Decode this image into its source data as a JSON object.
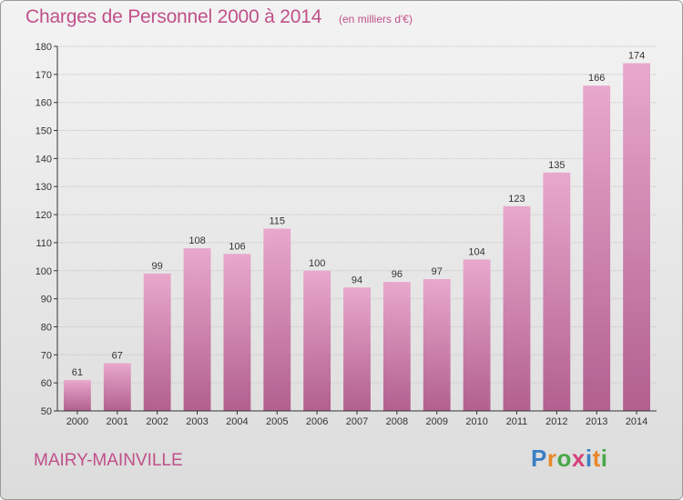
{
  "header": {
    "title": "Charges de Personnel 2000 à 2014",
    "subtitle": "(en milliers d'€)"
  },
  "footer": {
    "city": "MAIRY-MAINVILLE",
    "brand_letters": [
      "P",
      "r",
      "o",
      "x",
      "i",
      "t",
      "i"
    ],
    "brand_colors": [
      "#3a7fc4",
      "#e8892a",
      "#4aa84a",
      "#d6417a",
      "#3a7fc4",
      "#e8892a",
      "#4aa84a"
    ]
  },
  "colors": {
    "bar_top": "#e8a8cc",
    "bar_bottom": "#b2608f",
    "accent": "#c0508a"
  },
  "chart_data": {
    "type": "bar",
    "title": "Charges de Personnel 2000 à 2014",
    "categories": [
      "2000",
      "2001",
      "2002",
      "2003",
      "2004",
      "2005",
      "2006",
      "2007",
      "2008",
      "2009",
      "2010",
      "2011",
      "2012",
      "2013",
      "2014"
    ],
    "values": [
      61,
      67,
      99,
      108,
      106,
      115,
      100,
      94,
      96,
      97,
      104,
      123,
      135,
      166,
      174
    ],
    "ylim": [
      50,
      180
    ],
    "yticks": [
      50,
      60,
      70,
      80,
      90,
      100,
      110,
      120,
      130,
      140,
      150,
      160,
      170,
      180
    ],
    "grid": true,
    "legend": "none"
  }
}
